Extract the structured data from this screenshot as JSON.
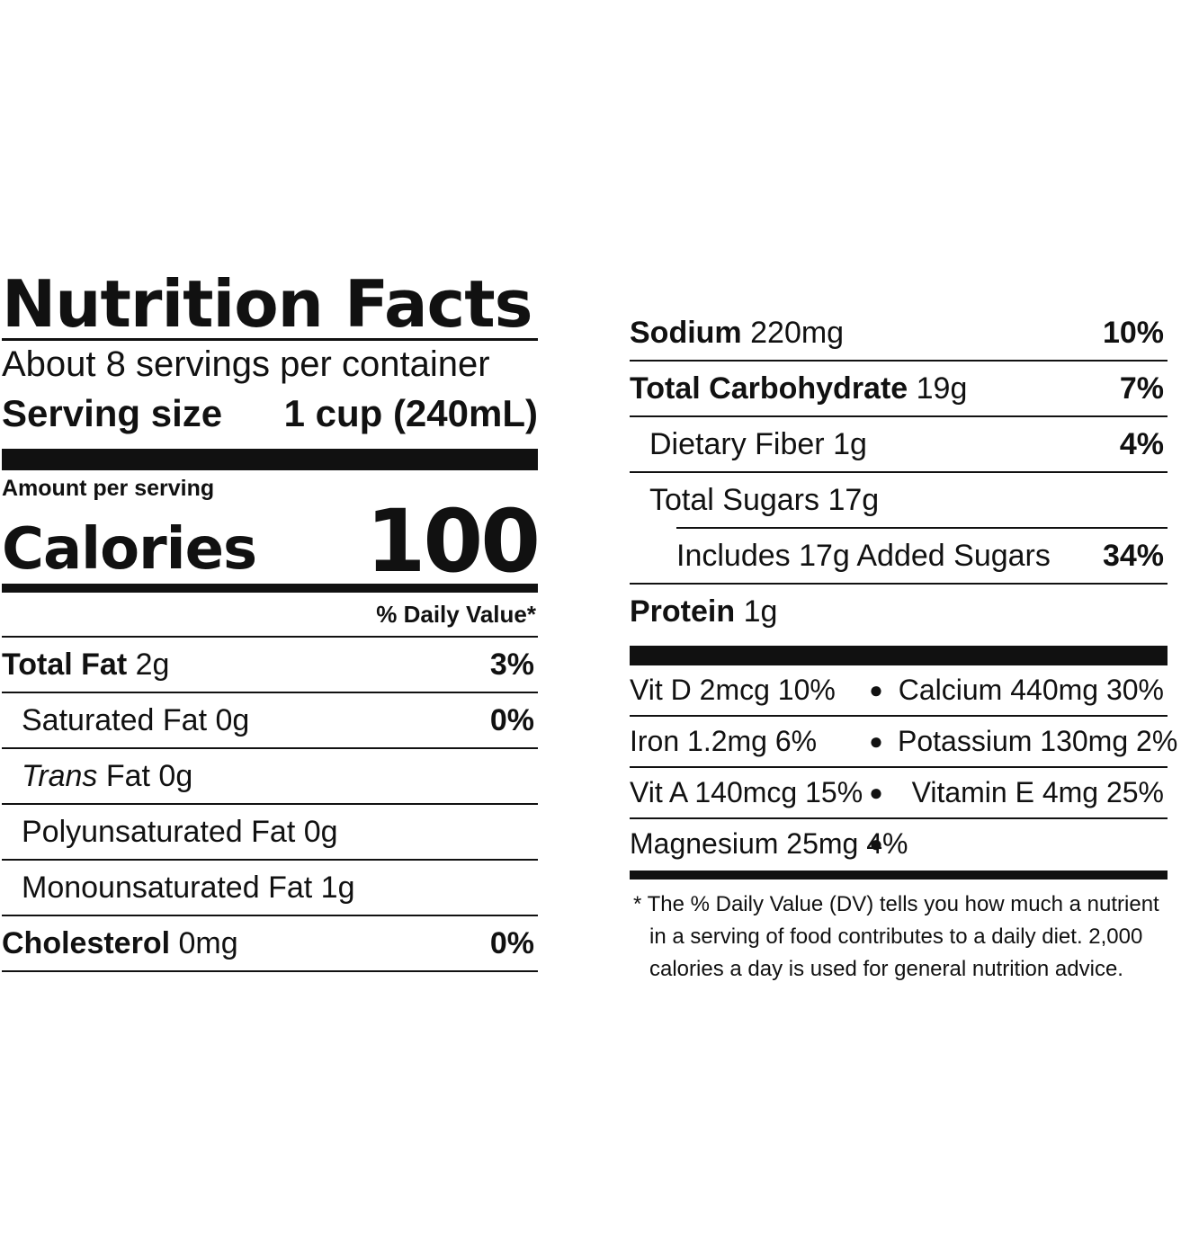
{
  "left": {
    "title": "Nutrition Facts",
    "servings_per_container": "About 8 servings per container",
    "serving_size_label": "Serving size",
    "serving_size_value": "1 cup (240mL)",
    "amount_per_serving": "Amount per serving",
    "calories_label": "Calories",
    "calories_value": "100",
    "daily_value_header": "% Daily Value*",
    "rows": [
      {
        "name": "Total Fat",
        "amount": "2g",
        "dv": "3%"
      },
      {
        "name": "Saturated Fat",
        "amount": "0g",
        "dv": "0%"
      },
      {
        "name_italic": "Trans",
        "name": "Fat",
        "amount": "0g",
        "dv": ""
      },
      {
        "name": "Polyunsaturated Fat",
        "amount": "0g",
        "dv": ""
      },
      {
        "name": "Monounsaturated Fat",
        "amount": "1g",
        "dv": ""
      },
      {
        "name": "Cholesterol",
        "amount": "0mg",
        "dv": "0%"
      }
    ]
  },
  "right": {
    "rows": [
      {
        "name": "Sodium",
        "amount": "220mg",
        "dv": "10%"
      },
      {
        "name": "Total Carbohydrate",
        "amount": "19g",
        "dv": "7%"
      },
      {
        "name": "Dietary Fiber",
        "amount": "1g",
        "dv": "4%"
      },
      {
        "name": "Total Sugars",
        "amount": "17g",
        "dv": ""
      },
      {
        "name": "Includes 17g Added Sugars",
        "amount": "",
        "dv": "34%"
      },
      {
        "name": "Protein",
        "amount": "1g",
        "dv": ""
      }
    ],
    "vitamins": [
      {
        "left": "Vit D 2mcg 10%",
        "right": "Calcium 440mg 30%"
      },
      {
        "left": "Iron 1.2mg 6%",
        "right": "Potassium 130mg 2%"
      },
      {
        "left": "Vit A 140mcg 15%",
        "right": "Vitamin E 4mg 25%"
      },
      {
        "left": "Magnesium 25mg 4%",
        "right": ""
      }
    ],
    "bullet": "●",
    "footnote": [
      "* The % Daily Value (DV) tells you how much a nutrient",
      "in a serving of food contributes to a daily diet. 2,000",
      "calories a day is used for general nutrition advice."
    ]
  }
}
